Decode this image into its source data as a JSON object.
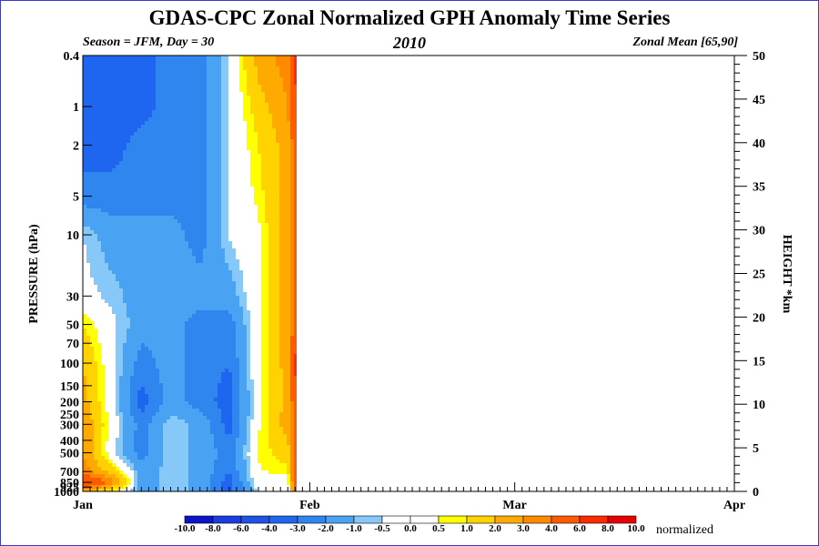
{
  "header": {
    "title": "GDAS-CPC Zonal Normalized GPH Anomaly Time Series",
    "season_label": "Season = JFM, Day =  30",
    "year": "2010",
    "zonal_label": "Zonal Mean [65,90]"
  },
  "chart_data": {
    "type": "heatmap",
    "title": "GDAS-CPC Zonal Normalized GPH Anomaly Time Series",
    "ylabel_left": "PRESSURE (hPa)",
    "ylabel_right": "HEIGHT *km",
    "pressure_levels": [
      {
        "value": 0.4,
        "label": "0.4"
      },
      {
        "value": 1,
        "label": "1"
      },
      {
        "value": 2,
        "label": "2"
      },
      {
        "value": 5,
        "label": "5"
      },
      {
        "value": 10,
        "label": "10"
      },
      {
        "value": 30,
        "label": "30"
      },
      {
        "value": 50,
        "label": "50"
      },
      {
        "value": 70,
        "label": "70"
      },
      {
        "value": 100,
        "label": "100"
      },
      {
        "value": 150,
        "label": "150"
      },
      {
        "value": 200,
        "label": "200"
      },
      {
        "value": 250,
        "label": "250"
      },
      {
        "value": 300,
        "label": "300"
      },
      {
        "value": 400,
        "label": "400"
      },
      {
        "value": 500,
        "label": "500"
      },
      {
        "value": 700,
        "label": "700"
      },
      {
        "value": 850,
        "label": "850"
      },
      {
        "value": 925,
        "label": "925"
      },
      {
        "value": 1000,
        "label": "1000"
      }
    ],
    "height_ticks": [
      50,
      45,
      40,
      35,
      30,
      25,
      20,
      15,
      10,
      5,
      0
    ],
    "height_range_km": [
      0,
      50
    ],
    "x_tick_labels": [
      "Jan",
      "Feb",
      "Mar",
      "Apr"
    ],
    "x_range_days": [
      1,
      90
    ],
    "data_through_day": 30,
    "legend": {
      "unit": "normalized",
      "boundaries": [
        "-10.0",
        "-8.0",
        "-6.0",
        "-4.0",
        "-3.0",
        "-2.0",
        "-1.0",
        "-0.5",
        "0.0",
        "0.5",
        "1.0",
        "2.0",
        "3.0",
        "4.0",
        "6.0",
        "8.0",
        "10.0"
      ],
      "colors": [
        "#0a14c8",
        "#1a3ce0",
        "#2052e6",
        "#1e66f0",
        "#2f86ee",
        "#4aa2f2",
        "#86c8f8",
        "#ffffff",
        "#ffffff",
        "#ffff00",
        "#ffd200",
        "#ffaa00",
        "#ff8a00",
        "#ff5a00",
        "#ff2a00",
        "#e60000"
      ]
    },
    "field": {
      "x_days": [
        1,
        5,
        9,
        13,
        17,
        21,
        25,
        29,
        30
      ],
      "levels_hpa": [
        1000,
        850,
        700,
        500,
        300,
        200,
        100,
        50,
        30,
        10,
        5,
        2,
        1,
        0.4
      ],
      "values": [
        [
          2.5,
          0.8,
          -1.5,
          -0.6,
          -1.2,
          -3.5,
          -0.4,
          -0.3,
          4.5
        ],
        [
          6.5,
          3.5,
          -1.5,
          -0.6,
          -1.2,
          -3.5,
          0.2,
          0.1,
          5.0
        ],
        [
          3.5,
          1.5,
          -1.5,
          -0.6,
          -1.2,
          -3.0,
          0.4,
          0.8,
          5.0
        ],
        [
          3.0,
          -0.2,
          -2.5,
          -0.6,
          -1.2,
          -2.5,
          0.6,
          1.5,
          4.5
        ],
        [
          3.0,
          0.1,
          -2.5,
          -0.6,
          -1.2,
          -3.5,
          0.4,
          2.5,
          4.5
        ],
        [
          2.5,
          -0.2,
          -3.5,
          -1.5,
          -2.5,
          -3.5,
          0.2,
          2.5,
          5.0
        ],
        [
          2.0,
          -0.2,
          -2.5,
          -1.5,
          -2.5,
          -3.0,
          0.3,
          2.5,
          6.5
        ],
        [
          1.0,
          -0.3,
          -1.5,
          -1.5,
          -2.5,
          -2.5,
          0.3,
          2.5,
          4.5
        ],
        [
          -0.2,
          -0.7,
          -1.5,
          -1.5,
          -1.5,
          -1.5,
          0.3,
          2.5,
          4.5
        ],
        [
          -0.5,
          -1.5,
          -1.5,
          -1.5,
          -2.5,
          -0.4,
          0.3,
          2.5,
          4.5
        ],
        [
          -2.5,
          -2.5,
          -2.5,
          -2.5,
          -2.5,
          -0.4,
          0.7,
          2.5,
          5.0
        ],
        [
          -3.5,
          -3.5,
          -2.5,
          -2.5,
          -2.5,
          -0.4,
          1.0,
          2.5,
          5.0
        ],
        [
          -3.5,
          -3.5,
          -3.5,
          -2.5,
          -2.5,
          -0.4,
          1.5,
          3.0,
          5.0
        ],
        [
          -3.5,
          -3.5,
          -3.5,
          -2.5,
          -2.5,
          -0.4,
          2.5,
          3.5,
          7.5
        ]
      ]
    }
  }
}
